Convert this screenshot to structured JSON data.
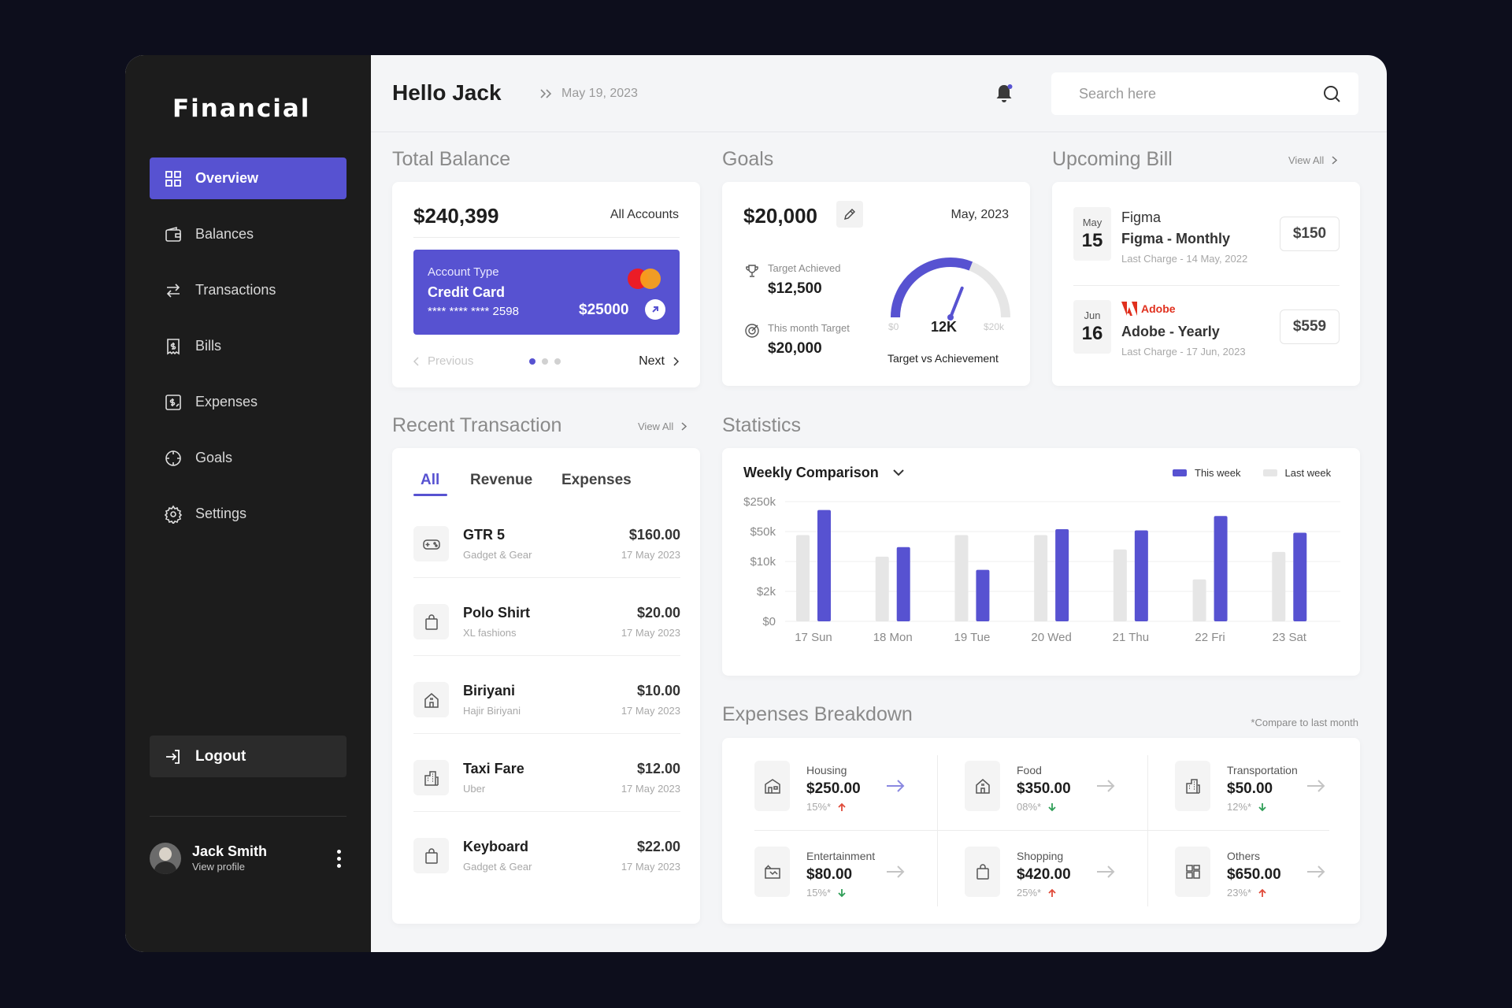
{
  "brand": "Financial",
  "nav": [
    {
      "label": "Overview",
      "icon": "grid-icon",
      "active": true
    },
    {
      "label": "Balances",
      "icon": "wallet-icon"
    },
    {
      "label": "Transactions",
      "icon": "arrows-icon"
    },
    {
      "label": "Bills",
      "icon": "bill-icon"
    },
    {
      "label": "Expenses",
      "icon": "expenses-icon"
    },
    {
      "label": "Goals",
      "icon": "crosshair-icon"
    },
    {
      "label": "Settings",
      "icon": "gear-icon"
    }
  ],
  "logout_label": "Logout",
  "profile": {
    "name": "Jack Smith",
    "link": "View profile"
  },
  "header": {
    "greeting": "Hello Jack",
    "date": "May 19, 2023",
    "search_placeholder": "Search here"
  },
  "balance": {
    "title": "Total Balance",
    "amount": "$240,399",
    "accounts_label": "All Accounts",
    "card": {
      "type_label": "Account Type",
      "type": "Credit Card",
      "number": "**** **** **** 2598",
      "amount": "$25000"
    },
    "prev_label": "Previous",
    "next_label": "Next"
  },
  "goals": {
    "title": "Goals",
    "amount": "$20,000",
    "month": "May, 2023",
    "achieved_label": "Target Achieved",
    "achieved_value": "$12,500",
    "target_label": "This month Target",
    "target_value": "$20,000",
    "gauge_min": "$0",
    "gauge_max": "$20k",
    "gauge_value": "12K",
    "gauge_fraction": 0.62,
    "gauge_caption": "Target vs Achievement"
  },
  "bills": {
    "title": "Upcoming Bill",
    "view_all": "View All",
    "items": [
      {
        "month": "May",
        "day": "15",
        "brand": "Figma",
        "name": "Figma - Monthly",
        "last": "Last Charge - 14 May, 2022",
        "price": "$150"
      },
      {
        "month": "Jun",
        "day": "16",
        "brand": "Adobe",
        "name": "Adobe - Yearly",
        "last": "Last Charge - 17 Jun, 2023",
        "price": "$559"
      }
    ]
  },
  "recent": {
    "title": "Recent Transaction",
    "view_all": "View All",
    "tabs": [
      "All",
      "Revenue",
      "Expenses"
    ],
    "items": [
      {
        "name": "GTR 5",
        "sub": "Gadget & Gear",
        "amount": "$160.00",
        "date": "17 May 2023",
        "icon": "gamepad-icon"
      },
      {
        "name": "Polo Shirt",
        "sub": "XL fashions",
        "amount": "$20.00",
        "date": "17 May 2023",
        "icon": "bag-icon"
      },
      {
        "name": "Biriyani",
        "sub": "Hajir Biriyani",
        "amount": "$10.00",
        "date": "17 May 2023",
        "icon": "food-icon"
      },
      {
        "name": "Taxi Fare",
        "sub": "Uber",
        "amount": "$12.00",
        "date": "17 May 2023",
        "icon": "building-icon"
      },
      {
        "name": "Keyboard",
        "sub": "Gadget & Gear",
        "amount": "$22.00",
        "date": "17 May 2023",
        "icon": "bag-icon"
      }
    ]
  },
  "statistics": {
    "title": "Statistics",
    "dropdown": "Weekly Comparison",
    "legend": [
      "This week",
      "Last week"
    ]
  },
  "chart_data": {
    "type": "bar",
    "categories": [
      "17 Sun",
      "18 Mon",
      "19 Tue",
      "20 Wed",
      "21 Thu",
      "22 Fri",
      "23 Sat"
    ],
    "yticks": [
      "$250k",
      "$50k",
      "$10k",
      "$2k",
      "$0"
    ],
    "series": [
      {
        "name": "This week",
        "values": [
          0.93,
          0.62,
          0.43,
          0.77,
          0.76,
          0.88,
          0.74
        ],
        "color": "#5752d1"
      },
      {
        "name": "Last week",
        "values": [
          0.72,
          0.54,
          0.72,
          0.72,
          0.6,
          0.35,
          0.58
        ],
        "color": "#e6e6e6"
      }
    ],
    "grid": true,
    "legend_position": "top-right"
  },
  "expenses": {
    "title": "Expenses Breakdown",
    "note": "*Compare to last month",
    "items": [
      {
        "category": "Housing",
        "amount": "$250.00",
        "pct": "15%*",
        "trend": "up",
        "icon": "house-icon"
      },
      {
        "category": "Food",
        "amount": "$350.00",
        "pct": "08%*",
        "trend": "down",
        "icon": "food-icon"
      },
      {
        "category": "Transportation",
        "amount": "$50.00",
        "pct": "12%*",
        "trend": "down",
        "icon": "building-icon"
      },
      {
        "category": "Entertainment",
        "amount": "$80.00",
        "pct": "15%*",
        "trend": "down",
        "icon": "ticket-icon"
      },
      {
        "category": "Shopping",
        "amount": "$420.00",
        "pct": "25%*",
        "trend": "up",
        "icon": "bag-icon"
      },
      {
        "category": "Others",
        "amount": "$650.00",
        "pct": "23%*",
        "trend": "up",
        "icon": "grid-icon"
      }
    ]
  },
  "colors": {
    "accent": "#5752d1",
    "up": "#e04b3a",
    "down": "#2f9e57"
  }
}
